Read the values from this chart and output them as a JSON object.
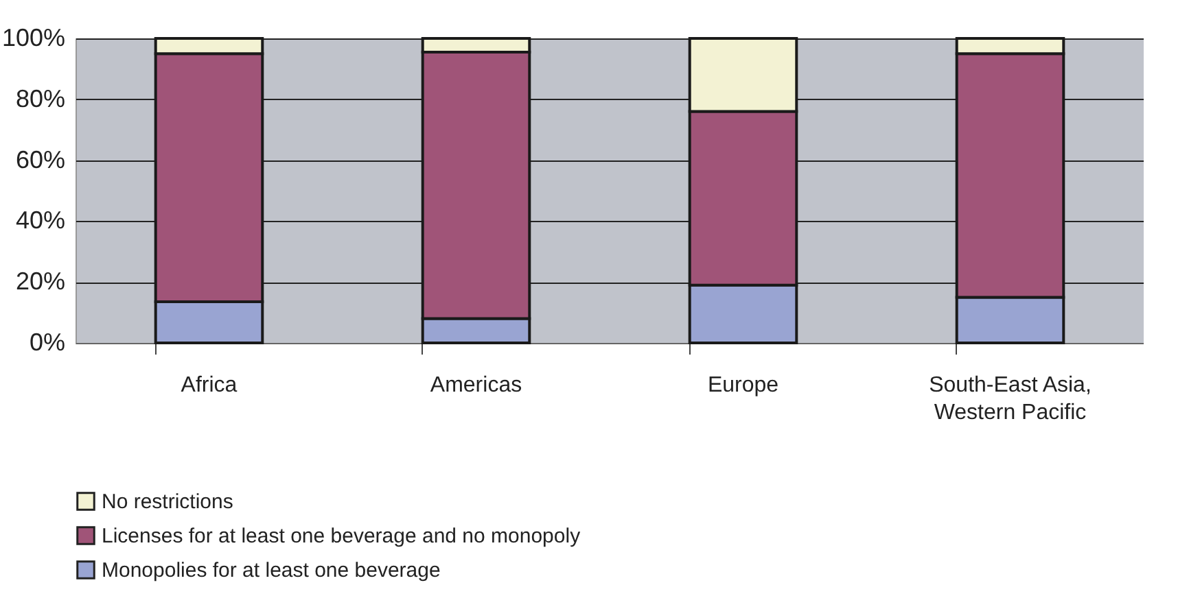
{
  "chart_data": {
    "type": "bar",
    "stacked": true,
    "categories": [
      "Africa",
      "Americas",
      "Europe",
      "South-East Asia, Western Pacific"
    ],
    "series": [
      {
        "name": "Monopolies for at least one beverage",
        "color": "#99a4d2",
        "values": [
          13.5,
          8,
          19,
          15
        ]
      },
      {
        "name": "Licenses for at least one beverage and no monopoly",
        "color": "#a05478",
        "values": [
          81.5,
          87.5,
          57,
          80
        ]
      },
      {
        "name": "No restrictions",
        "color": "#f3f2d3",
        "values": [
          5,
          4.5,
          24,
          5
        ]
      }
    ],
    "ylim": [
      0,
      100
    ],
    "yticks": [
      {
        "value": 0,
        "label": "0%"
      },
      {
        "value": 20,
        "label": "20%"
      },
      {
        "value": 40,
        "label": "40%"
      },
      {
        "value": 60,
        "label": "60%"
      },
      {
        "value": 80,
        "label": "80%"
      },
      {
        "value": 100,
        "label": "100%"
      }
    ],
    "grid": "y",
    "legend": "bottom"
  }
}
